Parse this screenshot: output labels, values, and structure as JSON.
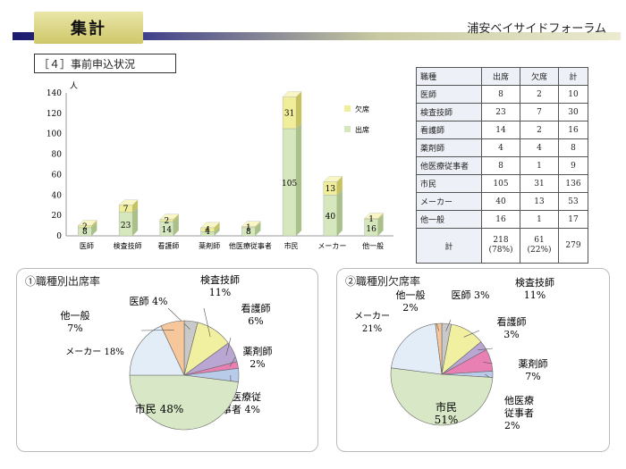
{
  "header": {
    "title": "集計",
    "brand": "浦安ベイサイドフォーラム"
  },
  "section_title": "［４］事前申込状況",
  "colors": {
    "present": "#d6e6bd",
    "absent": "#f0ee9a"
  },
  "chart_data": [
    {
      "type": "bar",
      "stacked": true,
      "ylabel": "人",
      "ylim": [
        0,
        140
      ],
      "yticks": [
        0,
        20,
        40,
        60,
        80,
        100,
        120,
        140
      ],
      "categories": [
        "医師",
        "検査技師",
        "看護師",
        "薬剤師",
        "他医療従事者",
        "市民",
        "メーカー",
        "他一般"
      ],
      "series": [
        {
          "name": "出席",
          "values": [
            8,
            23,
            14,
            4,
            8,
            105,
            40,
            16
          ]
        },
        {
          "name": "欠席",
          "values": [
            2,
            7,
            2,
            4,
            1,
            31,
            13,
            1
          ]
        }
      ],
      "legend": "right"
    },
    {
      "type": "pie",
      "title": "①職種別出席率",
      "slices": [
        {
          "label": "医師",
          "value": 4,
          "pct": "4%",
          "color": "#c9c9c9"
        },
        {
          "label": "検査技師",
          "value": 11,
          "pct": "11%",
          "color": "#f1f0a0"
        },
        {
          "label": "看護師",
          "value": 6,
          "pct": "6%",
          "color": "#b9a6d2"
        },
        {
          "label": "薬剤師",
          "value": 2,
          "pct": "2%",
          "color": "#e880b4"
        },
        {
          "label": "他医療従事者",
          "value": 4,
          "pct": "4%",
          "color": "#b8cbe8"
        },
        {
          "label": "市民",
          "value": 48,
          "pct": "48%",
          "color": "#d8e7c5"
        },
        {
          "label": "メーカー",
          "value": 18,
          "pct": "18%",
          "color": "#e2edf7"
        },
        {
          "label": "他一般",
          "value": 7,
          "pct": "7%",
          "color": "#f7c79c"
        }
      ]
    },
    {
      "type": "pie",
      "title": "②職種別欠席率",
      "slices": [
        {
          "label": "医師",
          "value": 3,
          "pct": "3%",
          "color": "#c9c9c9"
        },
        {
          "label": "検査技師",
          "value": 11,
          "pct": "11%",
          "color": "#f1f0a0"
        },
        {
          "label": "看護師",
          "value": 3,
          "pct": "3%",
          "color": "#b9a6d2"
        },
        {
          "label": "薬剤師",
          "value": 7,
          "pct": "7%",
          "color": "#e880b4"
        },
        {
          "label": "他医療従事者",
          "value": 2,
          "pct": "2%",
          "color": "#b8cbe8"
        },
        {
          "label": "市民",
          "value": 51,
          "pct": "51%",
          "color": "#d8e7c5"
        },
        {
          "label": "メーカー",
          "value": 21,
          "pct": "21%",
          "color": "#e2edf7"
        },
        {
          "label": "他一般",
          "value": 2,
          "pct": "2%",
          "color": "#f7c79c"
        }
      ]
    }
  ],
  "table": {
    "headers": [
      "職種",
      "出席",
      "欠席",
      "計"
    ],
    "rows": [
      [
        "医師",
        "8",
        "2",
        "10"
      ],
      [
        "検査技師",
        "23",
        "7",
        "30"
      ],
      [
        "看護師",
        "14",
        "2",
        "16"
      ],
      [
        "薬剤師",
        "4",
        "4",
        "8"
      ],
      [
        "他医療従事者",
        "8",
        "1",
        "9"
      ],
      [
        "市民",
        "105",
        "31",
        "136"
      ],
      [
        "メーカー",
        "40",
        "13",
        "53"
      ],
      [
        "他一般",
        "16",
        "1",
        "17"
      ]
    ],
    "total": {
      "label": "計",
      "present": "218",
      "present_pct": "(78%)",
      "absent": "61",
      "absent_pct": "(22%)",
      "sum": "279"
    }
  }
}
